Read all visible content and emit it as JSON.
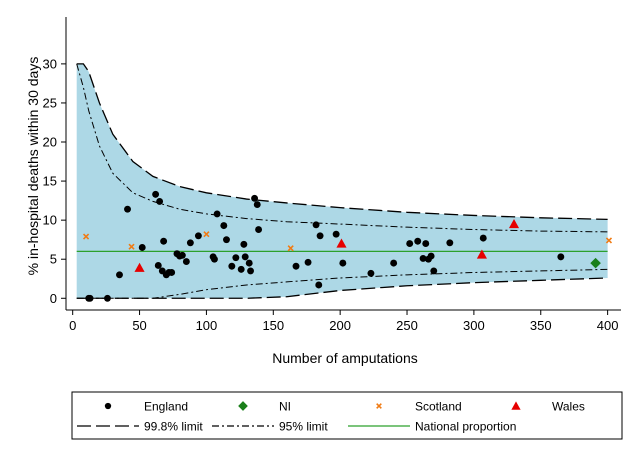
{
  "chart_data": {
    "type": "scatter",
    "xlabel": "Number of amputations",
    "ylabel": "% in-hospital deaths within 30 days",
    "xlim": [
      -5,
      410
    ],
    "ylim": [
      -1.5,
      36
    ],
    "xticks": [
      0,
      50,
      100,
      150,
      200,
      250,
      300,
      350,
      400
    ],
    "yticks": [
      0,
      5,
      10,
      15,
      20,
      25,
      30
    ],
    "grid": false,
    "legend_position": "bottom",
    "national_proportion": 6.0,
    "limits": {
      "x": [
        3,
        8,
        12,
        20,
        30,
        45,
        60,
        80,
        100,
        130,
        160,
        200,
        250,
        300,
        350,
        400
      ],
      "upper_998": [
        30,
        30,
        29,
        25,
        21,
        17.5,
        15.6,
        14.3,
        13.5,
        12.7,
        12.2,
        11.6,
        11.0,
        10.6,
        10.3,
        10.1
      ],
      "upper_95": [
        30,
        27,
        24,
        19.5,
        16,
        13.5,
        12.4,
        11.4,
        10.8,
        10.2,
        9.8,
        9.5,
        9.1,
        8.8,
        8.6,
        8.5
      ],
      "lower_95": [
        0,
        0,
        0,
        0,
        0,
        0,
        0,
        0.5,
        1.1,
        1.7,
        2.1,
        2.6,
        3.0,
        3.3,
        3.5,
        3.7
      ],
      "lower_998": [
        0,
        0,
        0,
        0,
        0,
        0,
        0,
        0,
        0,
        0,
        0.2,
        1.0,
        1.6,
        2.0,
        2.3,
        2.6
      ]
    },
    "series": [
      {
        "name": "England",
        "color": "#000000",
        "marker": "circle",
        "points": [
          [
            12,
            0
          ],
          [
            13,
            0
          ],
          [
            26,
            0
          ],
          [
            35,
            3
          ],
          [
            41,
            11.4
          ],
          [
            52,
            6.5
          ],
          [
            62,
            13.3
          ],
          [
            64,
            4.2
          ],
          [
            65,
            12.4
          ],
          [
            67,
            3.5
          ],
          [
            68,
            7.3
          ],
          [
            70,
            3.0
          ],
          [
            72,
            3.3
          ],
          [
            74,
            3.3
          ],
          [
            78,
            5.7
          ],
          [
            80,
            5.4
          ],
          [
            82,
            5.5
          ],
          [
            85,
            4.7
          ],
          [
            88,
            7.1
          ],
          [
            94,
            8.0
          ],
          [
            105,
            5.3
          ],
          [
            106,
            5.0
          ],
          [
            108,
            10.8
          ],
          [
            113,
            9.3
          ],
          [
            115,
            7.5
          ],
          [
            119,
            4.1
          ],
          [
            122,
            5.2
          ],
          [
            126,
            3.7
          ],
          [
            128,
            6.9
          ],
          [
            129,
            5.3
          ],
          [
            132,
            4.5
          ],
          [
            133,
            3.5
          ],
          [
            136,
            12.8
          ],
          [
            138,
            12.0
          ],
          [
            139,
            8.8
          ],
          [
            167,
            4.1
          ],
          [
            176,
            4.6
          ],
          [
            182,
            9.4
          ],
          [
            184,
            1.7
          ],
          [
            185,
            8.0
          ],
          [
            197,
            8.2
          ],
          [
            202,
            4.5
          ],
          [
            223,
            3.2
          ],
          [
            240,
            4.5
          ],
          [
            252,
            7.0
          ],
          [
            258,
            7.3
          ],
          [
            262,
            5.1
          ],
          [
            264,
            7.0
          ],
          [
            266,
            5.0
          ],
          [
            268,
            5.4
          ],
          [
            270,
            3.5
          ],
          [
            282,
            7.1
          ],
          [
            307,
            7.7
          ],
          [
            365,
            5.3
          ]
        ]
      },
      {
        "name": "NI",
        "color": "#1a7f1a",
        "marker": "diamond",
        "points": [
          [
            391,
            4.5
          ]
        ]
      },
      {
        "name": "Scotland",
        "color": "#f07b14",
        "marker": "x",
        "points": [
          [
            10,
            7.9
          ],
          [
            44,
            6.6
          ],
          [
            100,
            8.2
          ],
          [
            163,
            6.4
          ],
          [
            401,
            7.4
          ]
        ]
      },
      {
        "name": "Wales",
        "color": "#e60000",
        "marker": "triangle",
        "points": [
          [
            50,
            3.9
          ],
          [
            201,
            7.0
          ],
          [
            306,
            5.6
          ],
          [
            330,
            9.5
          ]
        ]
      }
    ],
    "legend": {
      "entries": [
        {
          "label": "England",
          "kind": "marker",
          "marker": "circle",
          "color": "#000000"
        },
        {
          "label": "NI",
          "kind": "marker",
          "marker": "diamond",
          "color": "#1a7f1a"
        },
        {
          "label": "Scotland",
          "kind": "marker",
          "marker": "x",
          "color": "#f07b14"
        },
        {
          "label": "Wales",
          "kind": "marker",
          "marker": "triangle",
          "color": "#e60000"
        },
        {
          "label": "99.8% limit",
          "kind": "line",
          "style": "long-dash",
          "color": "#000000"
        },
        {
          "label": "95% limit",
          "kind": "line",
          "style": "dash-dot",
          "color": "#000000"
        },
        {
          "label": "National proportion",
          "kind": "line",
          "style": "solid",
          "color": "#2ca02c"
        }
      ]
    },
    "colors": {
      "band_fill": "#add8e6",
      "limit_line": "#000000",
      "national_line": "#2ca02c"
    }
  }
}
